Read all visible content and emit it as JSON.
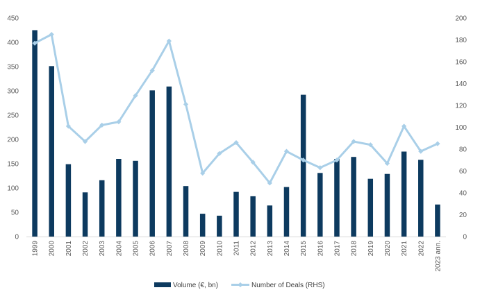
{
  "chart_data": {
    "type": "bar",
    "title": "",
    "xlabel": "",
    "ylabel": "",
    "y2label": "",
    "categories": [
      "1999",
      "2000",
      "2001",
      "2002",
      "2003",
      "2004",
      "2005",
      "2006",
      "2007",
      "2008",
      "2009",
      "2010",
      "2011",
      "2012",
      "2013",
      "2014",
      "2015",
      "2016",
      "2017",
      "2018",
      "2019",
      "2020",
      "2021",
      "2022",
      "2023 ann."
    ],
    "ylim": [
      0,
      450
    ],
    "y_ticks": [
      "0",
      "50",
      "100",
      "150",
      "200",
      "250",
      "300",
      "350",
      "400",
      "450"
    ],
    "y2lim": [
      0,
      200
    ],
    "y2_ticks": [
      "0",
      "20",
      "40",
      "60",
      "80",
      "100",
      "120",
      "140",
      "160",
      "180",
      "200"
    ],
    "legend_position": "bottom",
    "grid": false,
    "series": [
      {
        "name": "Volume (€, bn)",
        "type": "bar",
        "axis": "left",
        "color": "#0d3a5f",
        "values": [
          425,
          351,
          149,
          91,
          116,
          160,
          156,
          301,
          309,
          104,
          47,
          43,
          92,
          83,
          64,
          102,
          292,
          131,
          160,
          164,
          119,
          129,
          175,
          158,
          66
        ]
      },
      {
        "name": "Number of Deals (RHS)",
        "type": "line",
        "axis": "right",
        "color": "#a9cfe8",
        "values": [
          177,
          185,
          101,
          87,
          102,
          105,
          129,
          152,
          179,
          121,
          58,
          76,
          86,
          68,
          49,
          78,
          70,
          63,
          70,
          87,
          84,
          67,
          101,
          78,
          85
        ]
      }
    ]
  }
}
